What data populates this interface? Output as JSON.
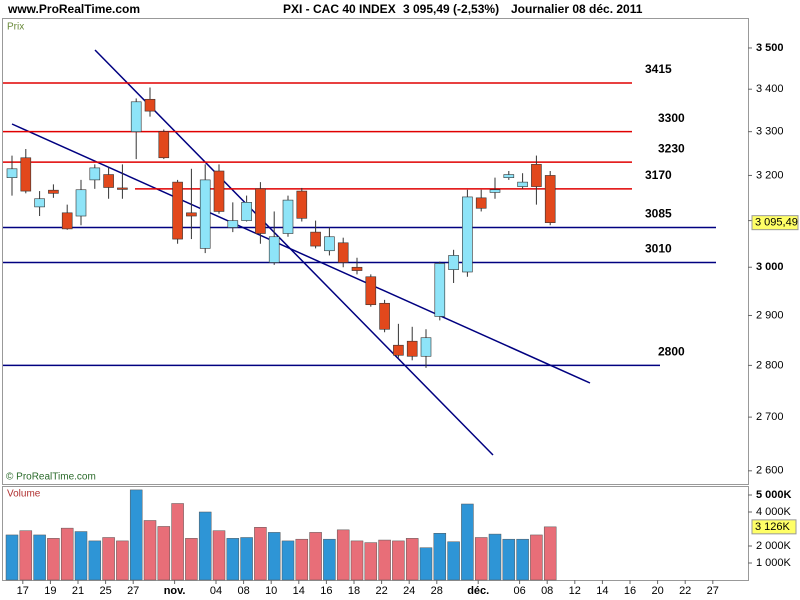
{
  "header": {
    "site": "www.ProRealTime.com",
    "title": "PXI - CAC 40 INDEX",
    "price": "3 095,49 (-2,53%)",
    "period": "Journalier  08 déc. 2011"
  },
  "chart_data": [
    {
      "type": "candlestick",
      "label": "Prix",
      "watermark": "© ProRealTime.com",
      "categories": [
        null,
        "17",
        null,
        "19",
        null,
        "21",
        null,
        "25",
        null,
        "27",
        null,
        null,
        "nov.",
        null,
        null,
        "04",
        null,
        "08",
        null,
        "10",
        null,
        "14",
        null,
        "16",
        null,
        "18",
        null,
        "22",
        null,
        "24",
        null,
        "28",
        null,
        null,
        "déc.",
        null,
        null,
        "06",
        null,
        "08"
      ],
      "future_categories": [
        "12",
        "14",
        "16",
        "20",
        "22",
        "27"
      ],
      "open": [
        3195,
        3240,
        3130,
        3167,
        3117,
        3110,
        3190,
        3202,
        3172,
        3300,
        3376,
        3300,
        3185,
        3117,
        3040,
        3210,
        3085,
        3100,
        3170,
        3010,
        3072,
        3165,
        3075,
        3035,
        3052,
        3000,
        2980,
        2925,
        2840,
        2848,
        2818,
        2898,
        2995,
        2990,
        3150,
        3162,
        3195,
        3175,
        3225,
        3200
      ],
      "high": [
        3245,
        3260,
        3165,
        3180,
        3135,
        3190,
        3225,
        3218,
        3225,
        3378,
        3404,
        3305,
        3190,
        3215,
        3225,
        3225,
        3140,
        3155,
        3185,
        3120,
        3155,
        3172,
        3100,
        3085,
        3063,
        3020,
        2985,
        2932,
        2883,
        2877,
        2872,
        3012,
        3037,
        3168,
        3168,
        3195,
        3210,
        3205,
        3245,
        3210
      ],
      "low": [
        3155,
        3160,
        3110,
        3150,
        3080,
        3090,
        3170,
        3148,
        3148,
        3237,
        3335,
        3237,
        3050,
        3060,
        3030,
        3115,
        3075,
        3098,
        3050,
        3005,
        3065,
        3098,
        3040,
        3025,
        3000,
        2985,
        2918,
        2866,
        2815,
        2810,
        2795,
        2890,
        2967,
        2980,
        3120,
        3148,
        3190,
        3170,
        3135,
        3090
      ],
      "close": [
        3215,
        3165,
        3148,
        3160,
        3082,
        3168,
        3217,
        3173,
        3170,
        3370,
        3348,
        3240,
        3060,
        3110,
        3190,
        3120,
        3100,
        3140,
        3072,
        3065,
        3145,
        3105,
        3045,
        3065,
        3010,
        2993,
        2922,
        2872,
        2820,
        2818,
        2855,
        3008,
        3025,
        3152,
        3127,
        3168,
        3202,
        3185,
        3175,
        3095.49
      ],
      "up_color": "#8ee4f8",
      "down_color": "#e2481c",
      "log_scale": true,
      "ylim": [
        2576,
        3572
      ],
      "yticks": [
        {
          "value": 2600,
          "label": "2 600"
        },
        {
          "value": 2700,
          "label": "2 700"
        },
        {
          "value": 2800,
          "label": "2 800"
        },
        {
          "value": 2900,
          "label": "2 900"
        },
        {
          "value": 3000,
          "label": "3 000"
        },
        {
          "value": 3100,
          "label": "3 100"
        },
        {
          "value": 3200,
          "label": "3 200"
        },
        {
          "value": 3300,
          "label": "3 300"
        },
        {
          "value": 3400,
          "label": "3 400"
        },
        {
          "value": 3500,
          "label": "3 500"
        }
      ],
      "last_value": {
        "value": 3095.49,
        "label": "3 095,49"
      },
      "hlines": [
        {
          "value": 3415,
          "color": "#e00000"
        },
        {
          "value": 3300,
          "color": "#e00000"
        },
        {
          "value": 3230,
          "color": "#e00000"
        },
        {
          "value": 3170,
          "color": "#e00000"
        },
        {
          "value": 3085,
          "color": "#000080"
        },
        {
          "value": 3010,
          "color": "#000080"
        },
        {
          "value": 2800,
          "color": "#000080"
        }
      ]
    },
    {
      "type": "bar",
      "label": "Volume",
      "values": [
        2650,
        2900,
        2650,
        2450,
        3050,
        2850,
        2300,
        2500,
        2300,
        5300,
        3500,
        3150,
        4500,
        2450,
        4000,
        2900,
        2450,
        2500,
        3100,
        2800,
        2300,
        2400,
        2800,
        2400,
        2950,
        2300,
        2200,
        2350,
        2300,
        2450,
        1900,
        2750,
        2250,
        4470,
        2500,
        2700,
        2400,
        2400,
        2650,
        3126
      ],
      "up_color": "#2e95d6",
      "down_color": "#e86e78",
      "ylim": [
        0,
        5470
      ],
      "yticks": [
        {
          "value": 1000,
          "label": "1 000K"
        },
        {
          "value": 2000,
          "label": "2 000K"
        },
        {
          "value": 4000,
          "label": "4 000K"
        },
        {
          "value": 5000,
          "label": "5 000K"
        }
      ],
      "last_value": {
        "value": 3126,
        "label": "3 126K"
      }
    }
  ]
}
